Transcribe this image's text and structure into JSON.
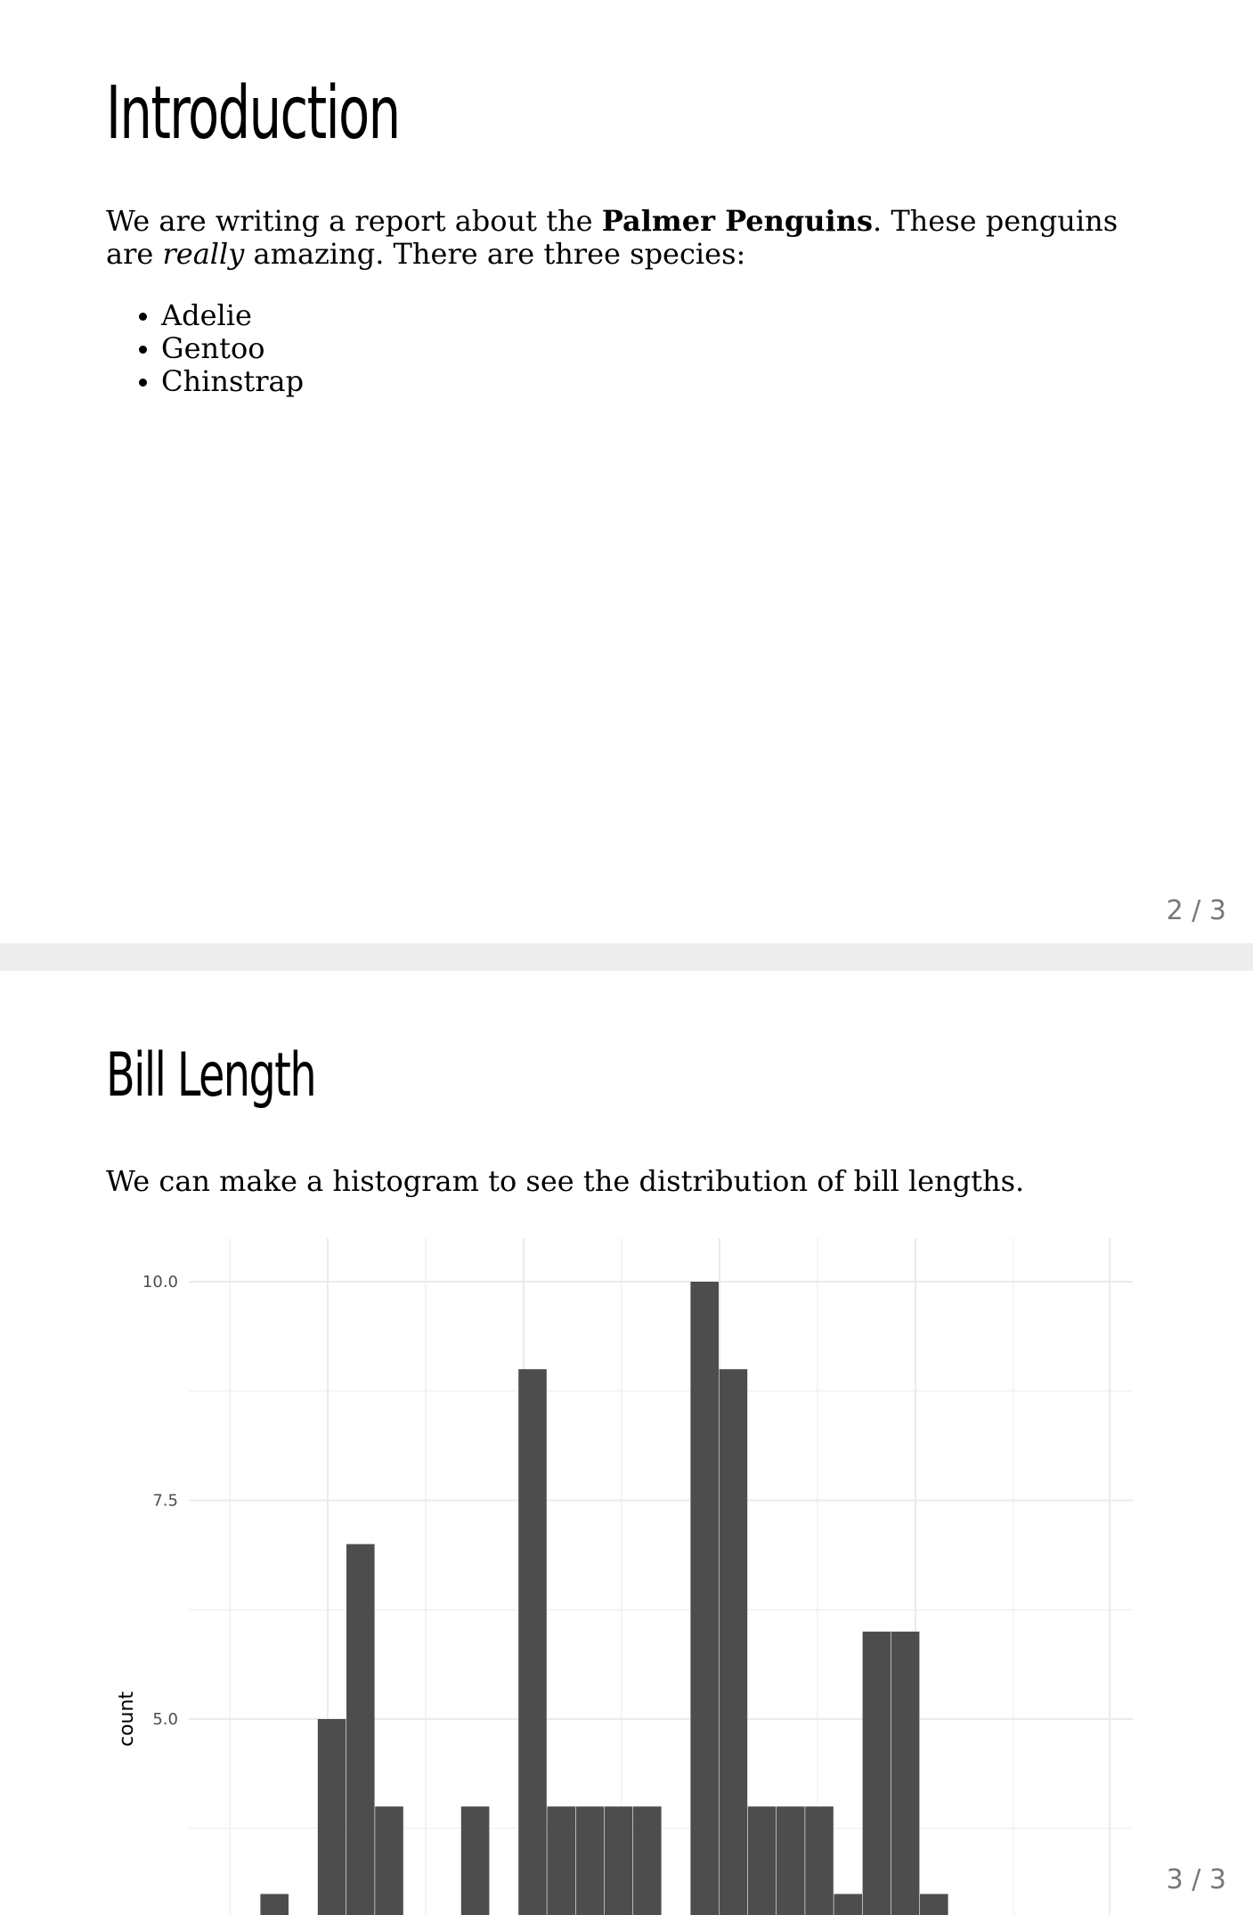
{
  "slides": [
    {
      "title": "Introduction",
      "intro": {
        "before": "We are writing a report about the ",
        "bold": "Palmer Penguins",
        "after_bold": ". These penguins are ",
        "italic": "really",
        "after_italic": " amazing. There are three species:"
      },
      "species": [
        "Adelie",
        "Gentoo",
        "Chinstrap"
      ],
      "page_number": "2 / 3"
    },
    {
      "title": "Bill Length",
      "text": "We can make a histogram to see the distribution of bill lengths.",
      "page_number": "3 / 3"
    }
  ],
  "colors": {
    "bar": "#4d4d4d",
    "grid": "#ebebeb",
    "separator": "#ededed",
    "page_number": "#777777"
  },
  "chart_data": {
    "type": "bar",
    "xlabel": "",
    "ylabel": "count",
    "yticks": [
      "5.0",
      "7.5",
      "10.0"
    ],
    "ytick_values": [
      5.0,
      7.5,
      10.0
    ],
    "bins": [
      {
        "bin": 1,
        "value": 0
      },
      {
        "bin": 2,
        "value": 0
      },
      {
        "bin": 3,
        "value": 3
      },
      {
        "bin": 4,
        "value": 0
      },
      {
        "bin": 5,
        "value": 5
      },
      {
        "bin": 6,
        "value": 7
      },
      {
        "bin": 7,
        "value": 4
      },
      {
        "bin": 8,
        "value": 0
      },
      {
        "bin": 9,
        "value": 0
      },
      {
        "bin": 10,
        "value": 4
      },
      {
        "bin": 11,
        "value": 0
      },
      {
        "bin": 12,
        "value": 9
      },
      {
        "bin": 13,
        "value": 4
      },
      {
        "bin": 14,
        "value": 4
      },
      {
        "bin": 15,
        "value": 4
      },
      {
        "bin": 16,
        "value": 4
      },
      {
        "bin": 17,
        "value": 0
      },
      {
        "bin": 18,
        "value": 10
      },
      {
        "bin": 19,
        "value": 9
      },
      {
        "bin": 20,
        "value": 4
      },
      {
        "bin": 21,
        "value": 4
      },
      {
        "bin": 22,
        "value": 4
      },
      {
        "bin": 23,
        "value": 3
      },
      {
        "bin": 24,
        "value": 6
      },
      {
        "bin": 25,
        "value": 6
      },
      {
        "bin": 26,
        "value": 3
      }
    ],
    "grid": true,
    "legend": "none"
  }
}
